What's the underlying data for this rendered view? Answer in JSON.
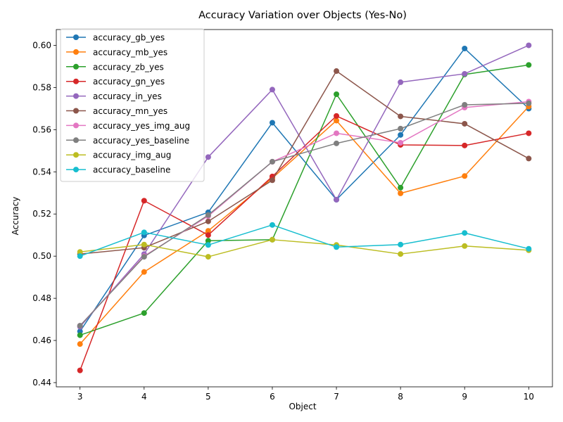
{
  "chart_data": {
    "type": "line",
    "title": "Accuracy Variation over Objects (Yes-No)",
    "xlabel": "Object",
    "ylabel": "Accuracy",
    "x": [
      3,
      4,
      5,
      6,
      7,
      8,
      9,
      10
    ],
    "xlim": [
      2.63,
      10.37
    ],
    "ylim": [
      0.438,
      0.6075
    ],
    "yticks": [
      "0.44",
      "0.46",
      "0.48",
      "0.50",
      "0.52",
      "0.54",
      "0.56",
      "0.58",
      "0.60"
    ],
    "ytick_values": [
      0.44,
      0.46,
      0.48,
      0.5,
      0.52,
      0.54,
      0.56,
      0.58,
      0.6
    ],
    "xticks": [
      "3",
      "4",
      "5",
      "6",
      "7",
      "8",
      "9",
      "10"
    ],
    "grid": false,
    "legend_position": "top-left",
    "series": [
      {
        "name": "accuracy_gb_yes",
        "color": "#1f77b4",
        "values": [
          0.4643,
          0.5098,
          0.5208,
          0.5633,
          0.5268,
          0.5575,
          0.5985,
          0.57
        ]
      },
      {
        "name": "accuracy_mb_yes",
        "color": "#ff7f0e",
        "values": [
          0.4583,
          0.4925,
          0.512,
          0.537,
          0.5643,
          0.5298,
          0.538,
          0.571
        ]
      },
      {
        "name": "accuracy_zb_yes",
        "color": "#2ca02c",
        "values": [
          0.4625,
          0.473,
          0.5073,
          0.5078,
          0.5768,
          0.5325,
          0.5862,
          0.5907
        ]
      },
      {
        "name": "accuracy_gn_yes",
        "color": "#d62728",
        "values": [
          0.4458,
          0.5263,
          0.51,
          0.5378,
          0.5665,
          0.5528,
          0.5525,
          0.5583
        ]
      },
      {
        "name": "accuracy_in_yes",
        "color": "#9467bd",
        "values": [
          0.4665,
          0.501,
          0.547,
          0.579,
          0.5268,
          0.5825,
          0.5865,
          0.6
        ]
      },
      {
        "name": "accuracy_mn_yes",
        "color": "#8c564b",
        "values": [
          0.501,
          0.504,
          0.5165,
          0.536,
          0.5878,
          0.5663,
          0.5628,
          0.5463
        ]
      },
      {
        "name": "accuracy_yes_img_aug",
        "color": "#e377c2",
        "values": [
          0.467,
          0.5,
          0.519,
          0.5448,
          0.5583,
          0.5538,
          0.5705,
          0.5733
        ]
      },
      {
        "name": "accuracy_yes_baseline",
        "color": "#7f7f7f",
        "values": [
          0.467,
          0.4997,
          0.5195,
          0.5448,
          0.5535,
          0.5605,
          0.5718,
          0.5725
        ]
      },
      {
        "name": "accuracy_img_aug",
        "color": "#bcbd22",
        "values": [
          0.502,
          0.5055,
          0.4997,
          0.5078,
          0.5053,
          0.501,
          0.5048,
          0.5028
        ]
      },
      {
        "name": "accuracy_baseline",
        "color": "#17becf",
        "values": [
          0.5,
          0.5113,
          0.5053,
          0.5148,
          0.5043,
          0.5055,
          0.511,
          0.5035
        ]
      }
    ]
  }
}
